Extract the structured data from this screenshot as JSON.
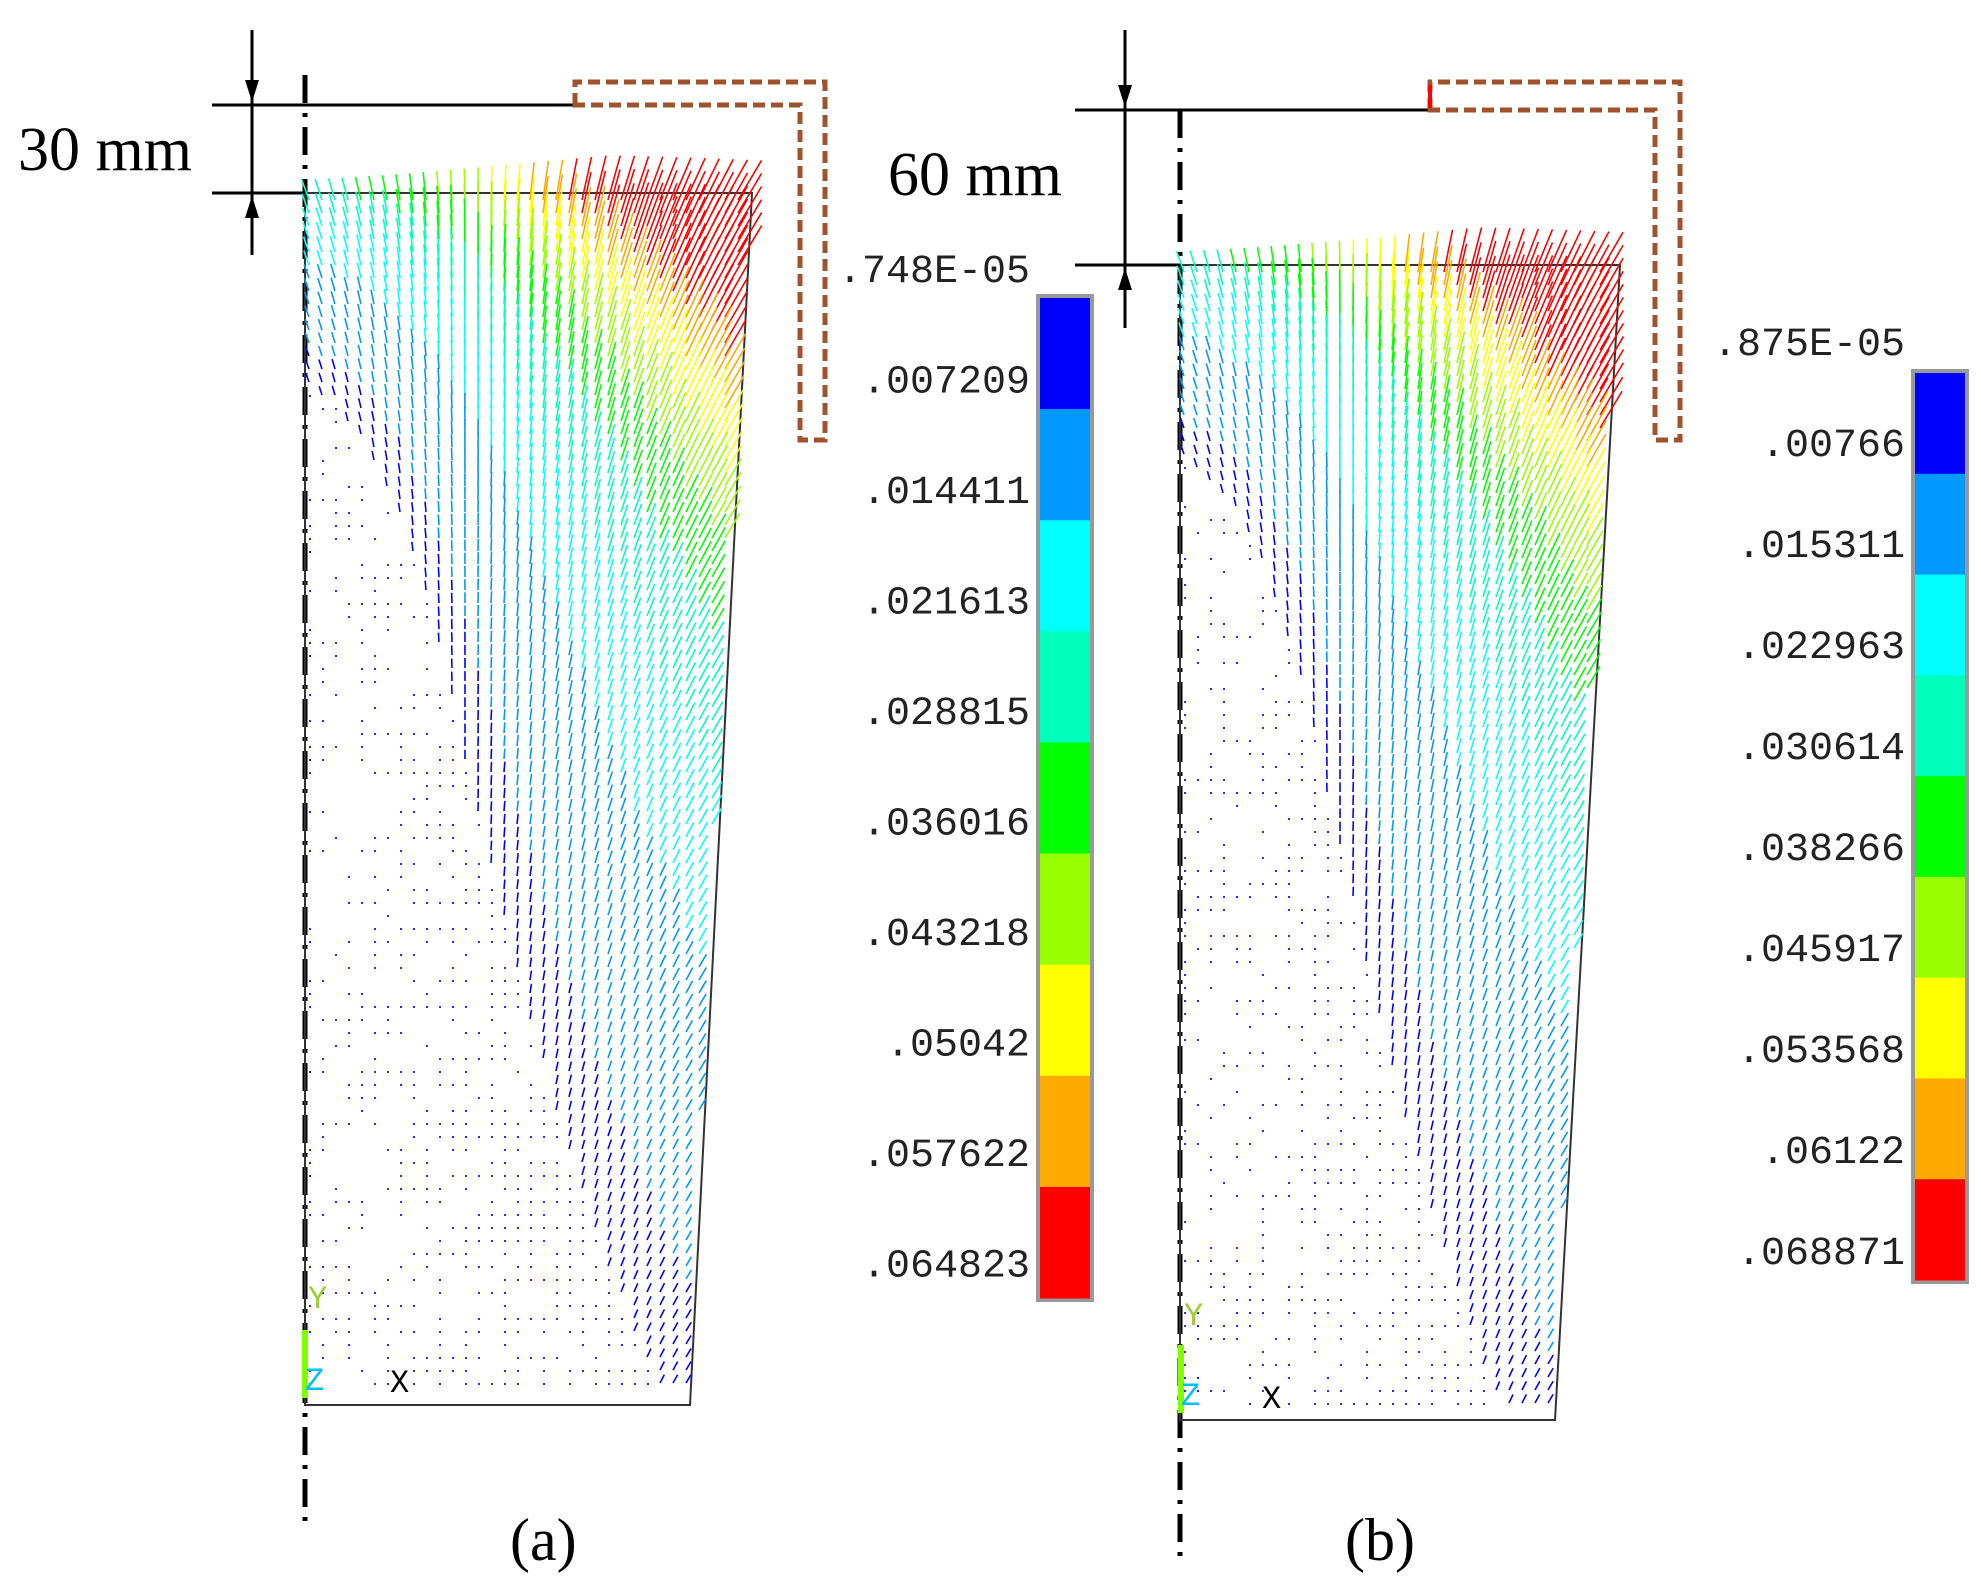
{
  "colors": {
    "legend_bands": [
      "#0000ff",
      "#0099ff",
      "#00ffff",
      "#00ffbb",
      "#00ff00",
      "#99ff00",
      "#ffff00",
      "#ffaa00",
      "#ff0000"
    ],
    "tool_outline": "#a0522d",
    "vector_blue": "#2a2aff"
  },
  "panels": [
    {
      "caption": "(a)",
      "dimension_label": "30 mm",
      "legend_labels": [
        ".748E-05",
        ".007209",
        ".014411",
        ".021613",
        ".028815",
        ".036016",
        ".043218",
        ".05042",
        ".057622",
        ".064823"
      ],
      "axis_labels": {
        "y": "Y",
        "z": "Z",
        "x": "X"
      }
    },
    {
      "caption": "(b)",
      "dimension_label": "60 mm",
      "legend_labels": [
        ".875E-05",
        ".00766",
        ".015311",
        ".022963",
        ".030614",
        ".038266",
        ".045917",
        ".053568",
        ".06122",
        ".068871"
      ],
      "axis_labels": {
        "y": "Y",
        "z": "Z",
        "x": "X"
      }
    }
  ]
}
